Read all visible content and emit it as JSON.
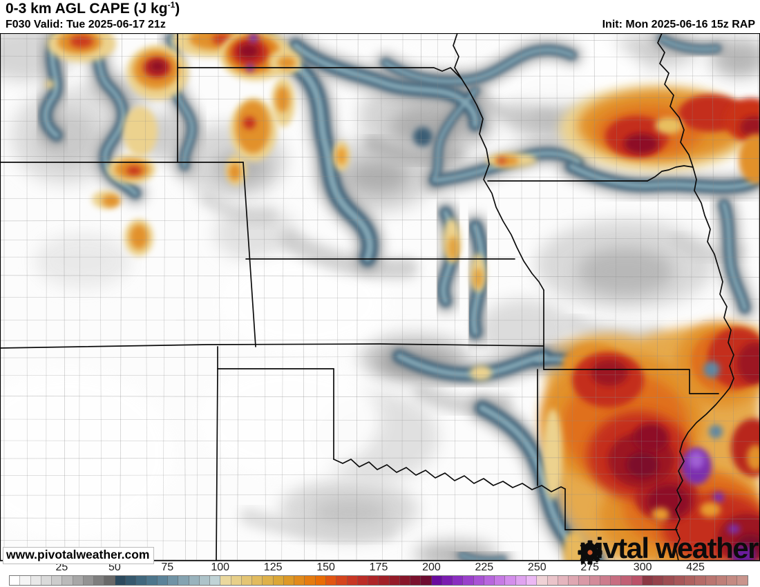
{
  "header": {
    "title_main": "0-3 km AGL CAPE (J kg",
    "title_sup": "-1",
    "title_close": ")",
    "valid": "F030 Valid: Tue 2025-06-17 21z",
    "init": "Init: Mon 2025-06-16 15z RAP"
  },
  "map": {
    "watermark": "www.pivotalweather.com",
    "logo_part1": "piv",
    "logo_part2": "tal weather",
    "gear_icon": "gear"
  },
  "colorbar": {
    "tick_labels": [
      "25",
      "50",
      "75",
      "100",
      "125",
      "150",
      "175",
      "200",
      "225",
      "250",
      "275",
      "300",
      "425"
    ],
    "swatch_colors": [
      "#ffffff",
      "#f5f5f5",
      "#e8e8e8",
      "#dadada",
      "#cccccc",
      "#bababa",
      "#a7a7a7",
      "#939393",
      "#7e7e7e",
      "#696969",
      "#2c4a5e",
      "#36596e",
      "#41687e",
      "#4d768c",
      "#5b8399",
      "#7093a5",
      "#85a3b1",
      "#99b3bd",
      "#adc3c9",
      "#c0d3d6",
      "#ead89e",
      "#e7cf89",
      "#e4c574",
      "#e1bb5f",
      "#deb14a",
      "#dba737",
      "#dd9927",
      "#e18a1b",
      "#e57b0f",
      "#e96c05",
      "#e25512",
      "#d5441d",
      "#c83724",
      "#bb2d27",
      "#ae2528",
      "#a12028",
      "#941b28",
      "#87162a",
      "#7a112d",
      "#6d0c30",
      "#690b9e",
      "#7a1cb0",
      "#8a2ec0",
      "#9a40cb",
      "#a953d5",
      "#b866de",
      "#c77ae5",
      "#d48eec",
      "#e0a3f0",
      "#ecb8f4",
      "#f0d2d6",
      "#ebc4ca",
      "#e5b5be",
      "#dfa7b2",
      "#d999a6",
      "#d38b9a",
      "#cd7c8d",
      "#c76e81",
      "#c16075",
      "#bb5269",
      "#8c3844",
      "#95424b",
      "#9e4d52",
      "#a75759",
      "#ae615f",
      "#b56b68",
      "#ba7570",
      "#bf7f78",
      "#c48a82",
      "#c9948c"
    ]
  }
}
